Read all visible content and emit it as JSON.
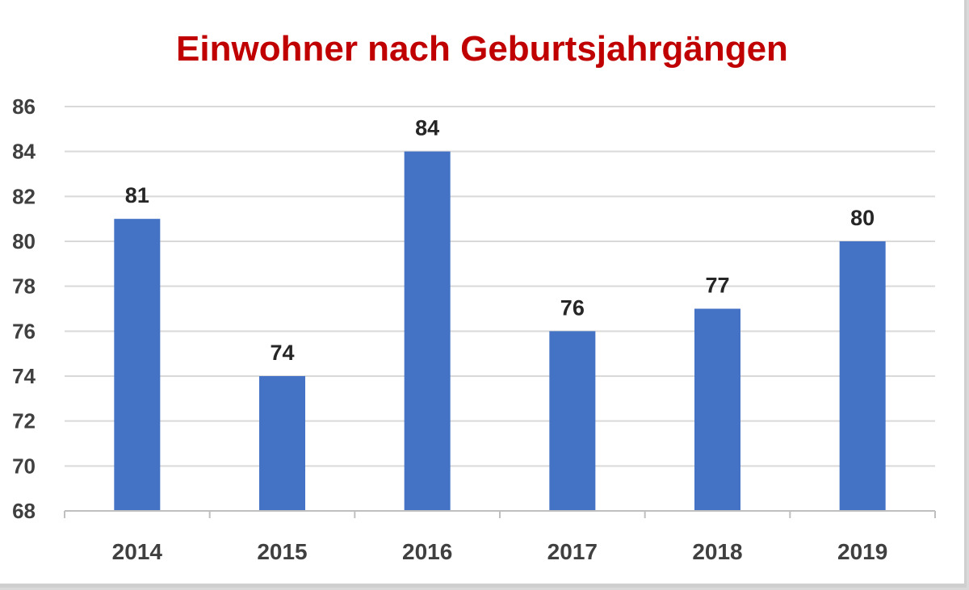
{
  "chart_data": {
    "type": "bar",
    "title": "Einwohner nach Geburtsjahrgängen",
    "categories": [
      "2014",
      "2015",
      "2016",
      "2017",
      "2018",
      "2019"
    ],
    "values": [
      81,
      74,
      84,
      76,
      77,
      80
    ],
    "data_labels": [
      "81",
      "74",
      "84",
      "76",
      "77",
      "80"
    ],
    "xlabel": "",
    "ylabel": "",
    "ylim": [
      68,
      86
    ],
    "yticks": [
      "68",
      "70",
      "72",
      "74",
      "76",
      "78",
      "80",
      "82",
      "84",
      "86"
    ],
    "grid": true,
    "legend": "none",
    "colors": {
      "bar": "#4472c4",
      "title": "#c00000",
      "grid": "#d9d9d9"
    }
  }
}
